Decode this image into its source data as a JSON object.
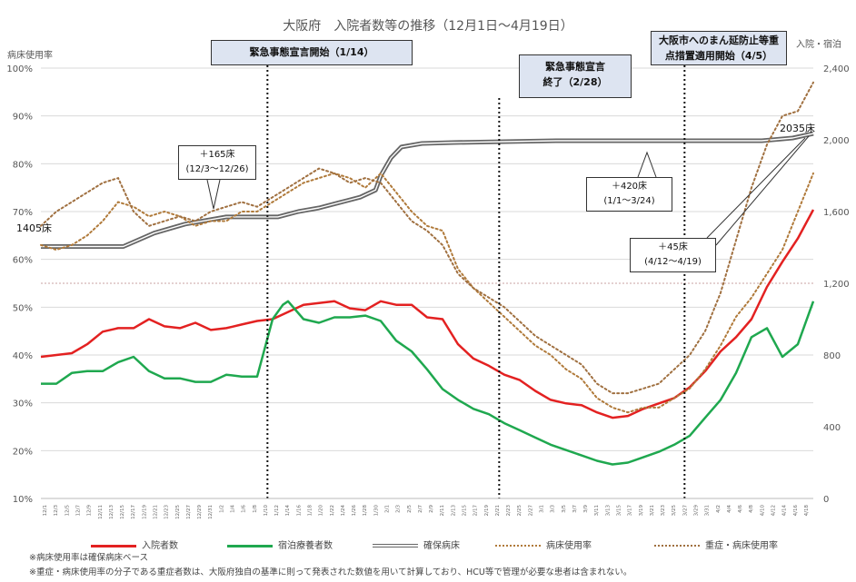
{
  "chart_data": {
    "type": "line",
    "title": "大阪府　入院者数等の推移（12月1日～4月19日）",
    "y_left_label": "病床使用率",
    "y_right_label": "入院・宿泊",
    "y_left_ticks": [
      "100%",
      "90%",
      "80%",
      "70%",
      "60%",
      "50%",
      "40%",
      "30%",
      "20%",
      "10%"
    ],
    "y_left_range": [
      10,
      100
    ],
    "y_right_ticks": [
      "2,400",
      "2,000",
      "1,600",
      "1,200",
      "800",
      "400",
      "0"
    ],
    "y_right_range": [
      0,
      2400
    ],
    "date_start": "12/1",
    "date_end": "4/19",
    "series": [
      {
        "name": "入院者数",
        "color": "#e32121",
        "axis": "right",
        "points": [
          [
            0,
            790
          ],
          [
            3,
            800
          ],
          [
            6,
            810
          ],
          [
            9,
            860
          ],
          [
            12,
            930
          ],
          [
            15,
            950
          ],
          [
            18,
            950
          ],
          [
            21,
            1000
          ],
          [
            24,
            960
          ],
          [
            27,
            950
          ],
          [
            30,
            980
          ],
          [
            33,
            940
          ],
          [
            36,
            950
          ],
          [
            39,
            970
          ],
          [
            42,
            990
          ],
          [
            45,
            1000
          ],
          [
            48,
            1040
          ],
          [
            51,
            1080
          ],
          [
            54,
            1090
          ],
          [
            57,
            1100
          ],
          [
            60,
            1060
          ],
          [
            63,
            1050
          ],
          [
            66,
            1100
          ],
          [
            69,
            1080
          ],
          [
            72,
            1080
          ],
          [
            75,
            1010
          ],
          [
            78,
            1000
          ],
          [
            81,
            860
          ],
          [
            84,
            780
          ],
          [
            87,
            740
          ],
          [
            90,
            690
          ],
          [
            93,
            660
          ],
          [
            96,
            600
          ],
          [
            99,
            550
          ],
          [
            102,
            530
          ],
          [
            105,
            520
          ],
          [
            108,
            480
          ],
          [
            111,
            450
          ],
          [
            114,
            460
          ],
          [
            117,
            500
          ],
          [
            120,
            530
          ],
          [
            123,
            560
          ],
          [
            126,
            620
          ],
          [
            129,
            710
          ],
          [
            132,
            820
          ],
          [
            135,
            900
          ],
          [
            138,
            1000
          ],
          [
            141,
            1180
          ],
          [
            144,
            1320
          ],
          [
            147,
            1450
          ],
          [
            150,
            1610
          ]
        ]
      },
      {
        "name": "宿泊療養者数",
        "color": "#1fa84f",
        "axis": "right",
        "points": [
          [
            0,
            640
          ],
          [
            3,
            640
          ],
          [
            6,
            700
          ],
          [
            9,
            710
          ],
          [
            12,
            710
          ],
          [
            15,
            760
          ],
          [
            18,
            790
          ],
          [
            21,
            710
          ],
          [
            24,
            670
          ],
          [
            27,
            670
          ],
          [
            30,
            650
          ],
          [
            33,
            650
          ],
          [
            36,
            690
          ],
          [
            39,
            680
          ],
          [
            42,
            680
          ],
          [
            45,
            1000
          ],
          [
            47,
            1080
          ],
          [
            48,
            1100
          ],
          [
            51,
            1000
          ],
          [
            54,
            980
          ],
          [
            57,
            1010
          ],
          [
            60,
            1010
          ],
          [
            63,
            1020
          ],
          [
            66,
            990
          ],
          [
            69,
            880
          ],
          [
            72,
            820
          ],
          [
            75,
            720
          ],
          [
            78,
            610
          ],
          [
            81,
            550
          ],
          [
            84,
            500
          ],
          [
            87,
            470
          ],
          [
            90,
            420
          ],
          [
            93,
            380
          ],
          [
            96,
            340
          ],
          [
            99,
            300
          ],
          [
            102,
            270
          ],
          [
            105,
            240
          ],
          [
            108,
            210
          ],
          [
            111,
            190
          ],
          [
            114,
            200
          ],
          [
            117,
            230
          ],
          [
            120,
            260
          ],
          [
            123,
            300
          ],
          [
            126,
            350
          ],
          [
            129,
            450
          ],
          [
            132,
            550
          ],
          [
            135,
            700
          ],
          [
            138,
            900
          ],
          [
            141,
            950
          ],
          [
            144,
            790
          ],
          [
            147,
            860
          ],
          [
            150,
            1100
          ]
        ]
      },
      {
        "name": "確保病床",
        "color": "#666666",
        "axis": "right",
        "double_line": true,
        "points": [
          [
            0,
            1405
          ],
          [
            8,
            1405
          ],
          [
            16,
            1405
          ],
          [
            22,
            1480
          ],
          [
            28,
            1530
          ],
          [
            36,
            1570
          ],
          [
            42,
            1570
          ],
          [
            46,
            1570
          ],
          [
            50,
            1600
          ],
          [
            54,
            1620
          ],
          [
            58,
            1650
          ],
          [
            62,
            1680
          ],
          [
            65,
            1720
          ],
          [
            66,
            1800
          ],
          [
            68,
            1900
          ],
          [
            70,
            1960
          ],
          [
            74,
            1980
          ],
          [
            80,
            1985
          ],
          [
            90,
            1990
          ],
          [
            100,
            1995
          ],
          [
            110,
            1995
          ],
          [
            120,
            1995
          ],
          [
            130,
            1995
          ],
          [
            140,
            1995
          ],
          [
            146,
            2010
          ],
          [
            150,
            2035
          ]
        ]
      },
      {
        "name": "病床使用率",
        "color": "#b07a3a",
        "axis": "left",
        "dotted": true,
        "points": [
          [
            0,
            63
          ],
          [
            3,
            62
          ],
          [
            6,
            63
          ],
          [
            9,
            65
          ],
          [
            12,
            68
          ],
          [
            15,
            72
          ],
          [
            18,
            71
          ],
          [
            21,
            69
          ],
          [
            24,
            70
          ],
          [
            27,
            69
          ],
          [
            30,
            67
          ],
          [
            33,
            68
          ],
          [
            36,
            68
          ],
          [
            39,
            70
          ],
          [
            42,
            70
          ],
          [
            45,
            72
          ],
          [
            48,
            74
          ],
          [
            51,
            76
          ],
          [
            54,
            77
          ],
          [
            57,
            78
          ],
          [
            60,
            77
          ],
          [
            63,
            75
          ],
          [
            66,
            78
          ],
          [
            69,
            74
          ],
          [
            72,
            70
          ],
          [
            75,
            67
          ],
          [
            78,
            66
          ],
          [
            81,
            58
          ],
          [
            84,
            54
          ],
          [
            87,
            51
          ],
          [
            90,
            48
          ],
          [
            93,
            45
          ],
          [
            96,
            42
          ],
          [
            99,
            40
          ],
          [
            102,
            37
          ],
          [
            105,
            35
          ],
          [
            108,
            31
          ],
          [
            111,
            29
          ],
          [
            114,
            28
          ],
          [
            117,
            29
          ],
          [
            120,
            29
          ],
          [
            123,
            31
          ],
          [
            126,
            33
          ],
          [
            129,
            37
          ],
          [
            132,
            42
          ],
          [
            135,
            48
          ],
          [
            138,
            52
          ],
          [
            141,
            57
          ],
          [
            144,
            62
          ],
          [
            147,
            70
          ],
          [
            150,
            78
          ]
        ]
      },
      {
        "name": "重症・病床使用率",
        "color": "#a07040",
        "axis": "left",
        "dotted": true,
        "points": [
          [
            0,
            67
          ],
          [
            3,
            70
          ],
          [
            6,
            72
          ],
          [
            9,
            74
          ],
          [
            12,
            76
          ],
          [
            15,
            77
          ],
          [
            18,
            70
          ],
          [
            21,
            67
          ],
          [
            24,
            68
          ],
          [
            27,
            69
          ],
          [
            30,
            68
          ],
          [
            33,
            70
          ],
          [
            36,
            71
          ],
          [
            39,
            72
          ],
          [
            42,
            71
          ],
          [
            45,
            73
          ],
          [
            48,
            75
          ],
          [
            51,
            77
          ],
          [
            54,
            79
          ],
          [
            57,
            78
          ],
          [
            60,
            76
          ],
          [
            63,
            77
          ],
          [
            66,
            76
          ],
          [
            69,
            72
          ],
          [
            72,
            68
          ],
          [
            75,
            66
          ],
          [
            78,
            63
          ],
          [
            81,
            57
          ],
          [
            84,
            54
          ],
          [
            87,
            52
          ],
          [
            90,
            50
          ],
          [
            93,
            47
          ],
          [
            96,
            44
          ],
          [
            99,
            42
          ],
          [
            102,
            40
          ],
          [
            105,
            38
          ],
          [
            108,
            34
          ],
          [
            111,
            32
          ],
          [
            114,
            32
          ],
          [
            117,
            33
          ],
          [
            120,
            34
          ],
          [
            123,
            37
          ],
          [
            126,
            40
          ],
          [
            129,
            45
          ],
          [
            132,
            53
          ],
          [
            135,
            64
          ],
          [
            138,
            75
          ],
          [
            141,
            84
          ],
          [
            144,
            90
          ],
          [
            147,
            91
          ],
          [
            150,
            97
          ]
        ]
      }
    ],
    "vertical_markers": [
      {
        "day": 44,
        "label_lines": [
          "緊急事態宣言開始（1/14）"
        ]
      },
      {
        "day": 89,
        "label_lines": [
          "緊急事態宣言",
          "終了（2/28）"
        ]
      },
      {
        "day": 125,
        "label_lines": [
          "大阪市へのまん延防止等重",
          "点措置適用開始（4/5）"
        ]
      }
    ],
    "annotations": [
      {
        "lines": [
          "＋165床",
          "(12/3～12/26)"
        ]
      },
      {
        "lines": [
          "＋420床",
          "(1/1～3/24)"
        ]
      },
      {
        "lines": [
          "＋45床",
          "(4/12～4/19)"
        ]
      },
      {
        "lines": [
          "1405床"
        ]
      },
      {
        "lines": [
          "2035床"
        ]
      }
    ],
    "reference_line_value": 1200,
    "x_tick_labels": [
      "12/1",
      "12/3",
      "12/5",
      "12/7",
      "12/9",
      "12/11",
      "12/13",
      "12/15",
      "12/17",
      "12/19",
      "12/21",
      "12/23",
      "12/25",
      "12/27",
      "12/29",
      "12/31",
      "1/2",
      "1/4",
      "1/6",
      "1/8",
      "1/10",
      "1/12",
      "1/14",
      "1/16",
      "1/18",
      "1/20",
      "1/22",
      "1/24",
      "1/26",
      "1/28",
      "1/30",
      "2/1",
      "2/3",
      "2/5",
      "2/7",
      "2/9",
      "2/11",
      "2/13",
      "2/15",
      "2/17",
      "2/19",
      "2/21",
      "2/23",
      "2/25",
      "2/27",
      "3/1",
      "3/3",
      "3/5",
      "3/7",
      "3/9",
      "3/11",
      "3/13",
      "3/15",
      "3/17",
      "3/19",
      "3/21",
      "3/23",
      "3/25",
      "3/27",
      "3/29",
      "3/31",
      "4/2",
      "4/4",
      "4/6",
      "4/8",
      "4/10",
      "4/12",
      "4/14",
      "4/16",
      "4/18"
    ],
    "legend": [
      {
        "name": "入院者数",
        "style": "solid",
        "color": "#e32121"
      },
      {
        "name": "宿泊療養者数",
        "style": "solid",
        "color": "#1fa84f"
      },
      {
        "name": "確保病床",
        "style": "double",
        "color": "#666666"
      },
      {
        "name": "病床使用率",
        "style": "dotted",
        "color": "#b07a3a"
      },
      {
        "name": "重症・病床使用率",
        "style": "dotted",
        "color": "#a07040"
      }
    ],
    "notes": [
      "※病床使用率は確保病床ベース",
      "※重症・病床使用率の分子である重症者数は、大阪府独自の基準に則って発表された数値を用いて計算しており、HCU等で管理が必要な患者は含まれない。"
    ]
  }
}
